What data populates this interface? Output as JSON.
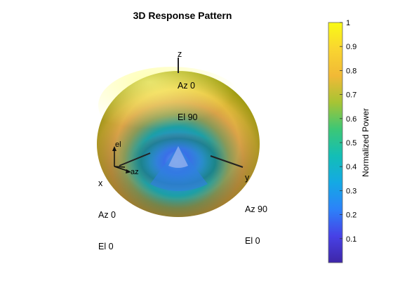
{
  "title": "3D Response Pattern",
  "axes_labels": {
    "z": [
      "z",
      "Az 0",
      "El 90"
    ],
    "x": [
      "x",
      "Az 0",
      "El 0"
    ],
    "y": [
      "y",
      "Az 90",
      "El 0"
    ],
    "el": "el",
    "az": "az"
  },
  "chart_data": {
    "type": "heatmap",
    "title": "3D Response Pattern",
    "colorbar": {
      "label": "Normalized Power",
      "range": [
        0,
        1
      ],
      "ticks": [
        0.1,
        0.2,
        0.3,
        0.4,
        0.5,
        0.6,
        0.7,
        0.8,
        0.9,
        1
      ],
      "tick_labels": [
        "0.1",
        "0.2",
        "0.3",
        "0.4",
        "0.5",
        "0.6",
        "0.7",
        "0.8",
        "0.9",
        "1"
      ],
      "colormap": [
        "#3e26a8",
        "#4741e6",
        "#2c82f9",
        "#14a9e4",
        "#13beb6",
        "#3cc776",
        "#a6c434",
        "#f1b936",
        "#f9d530",
        "#f9fb15"
      ],
      "position": "right"
    },
    "colors": {
      "surface_high": "#f9fb15",
      "surface_mid": "#e0a84a",
      "surface_low": "#2e5fe0",
      "surface_core": "#1fb0c0"
    }
  }
}
